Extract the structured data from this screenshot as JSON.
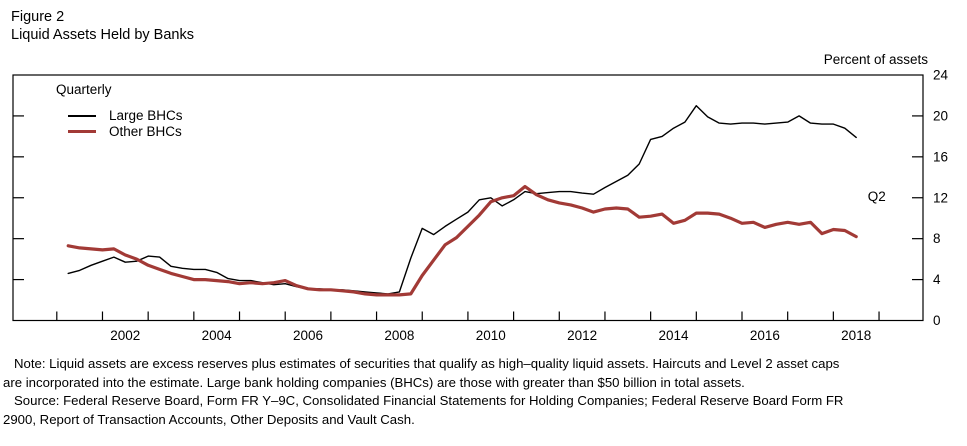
{
  "figure": {
    "label": "Figure 2",
    "title": "Liquid Assets Held by Banks",
    "unit_label": "Percent of assets",
    "frequency_label": "Quarterly"
  },
  "chart_data": {
    "type": "line",
    "title": "Liquid Assets Held by Banks",
    "ylabel": "Percent of assets",
    "frequency": "Quarterly",
    "grid": false,
    "legend_position": "top-left",
    "x_axis": {
      "tick_years": [
        2001,
        2002,
        2003,
        2004,
        2005,
        2006,
        2007,
        2008,
        2009,
        2010,
        2011,
        2012,
        2013,
        2014,
        2015,
        2016,
        2017,
        2018,
        2019
      ],
      "label_years": [
        "2002",
        "2004",
        "2006",
        "2008",
        "2010",
        "2012",
        "2014",
        "2016",
        "2018"
      ]
    },
    "y_axis": {
      "min": 0,
      "max": 24,
      "ticks": [
        0,
        4,
        8,
        12,
        16,
        20,
        24
      ],
      "side": "right"
    },
    "x_start": 2001.25,
    "x_step": 0.25,
    "series": [
      {
        "name": "Large BHCs",
        "color": "#000000",
        "line_width": 1.4,
        "values": [
          4.6,
          4.9,
          5.4,
          5.8,
          6.2,
          5.7,
          5.8,
          6.3,
          6.2,
          5.3,
          5.1,
          5.0,
          5.0,
          4.7,
          4.1,
          3.9,
          3.9,
          3.7,
          3.5,
          3.6,
          3.3,
          3.1,
          3.1,
          3.0,
          3.0,
          2.9,
          2.8,
          2.7,
          2.6,
          2.8,
          6.1,
          9.0,
          8.4,
          9.2,
          9.9,
          10.6,
          11.8,
          12.0,
          11.2,
          11.8,
          12.6,
          12.4,
          12.5,
          12.6,
          12.6,
          12.45,
          12.35,
          13.0,
          13.6,
          14.2,
          15.3,
          17.7,
          18.0,
          18.8,
          19.4,
          21.0,
          19.9,
          19.3,
          19.2,
          19.3,
          19.3,
          19.2,
          19.3,
          19.4,
          20.0,
          19.3,
          19.2,
          19.2,
          18.8,
          17.9
        ]
      },
      {
        "name": "Other BHCs",
        "color": "#a23a36",
        "line_width": 3.2,
        "values": [
          7.3,
          7.1,
          7.0,
          6.9,
          7.0,
          6.4,
          6.0,
          5.4,
          5.0,
          4.6,
          4.3,
          4.0,
          4.0,
          3.9,
          3.8,
          3.6,
          3.7,
          3.6,
          3.7,
          3.9,
          3.4,
          3.1,
          3.0,
          3.0,
          2.9,
          2.8,
          2.6,
          2.5,
          2.5,
          2.5,
          2.6,
          4.4,
          5.9,
          7.4,
          8.1,
          9.2,
          10.3,
          11.6,
          12.0,
          12.2,
          13.1,
          12.3,
          11.8,
          11.5,
          11.3,
          11.0,
          10.6,
          10.9,
          11.0,
          10.9,
          10.1,
          10.2,
          10.4,
          9.5,
          9.8,
          10.5,
          10.5,
          10.4,
          10.0,
          9.5,
          9.6,
          9.1,
          9.4,
          9.6,
          9.4,
          9.6,
          8.5,
          8.9,
          8.8,
          8.2
        ]
      }
    ],
    "annotation": {
      "text": "Q2",
      "x": 2018.95,
      "y": 12.1
    }
  },
  "notes": {
    "note_lines": [
      "Note: Liquid assets are excess reserves plus estimates of securities that qualify as high–quality liquid assets. Haircuts and Level 2 asset caps",
      "are incorporated into the estimate. Large bank holding companies (BHCs) are those with greater than $50 billion in total assets."
    ],
    "source_lines": [
      "Source: Federal Reserve Board, Form FR Y–9C, Consolidated Financial Statements for Holding Companies; Federal Reserve Board Form FR",
      "2900, Report of Transaction Accounts, Other Deposits and Vault Cash."
    ]
  }
}
